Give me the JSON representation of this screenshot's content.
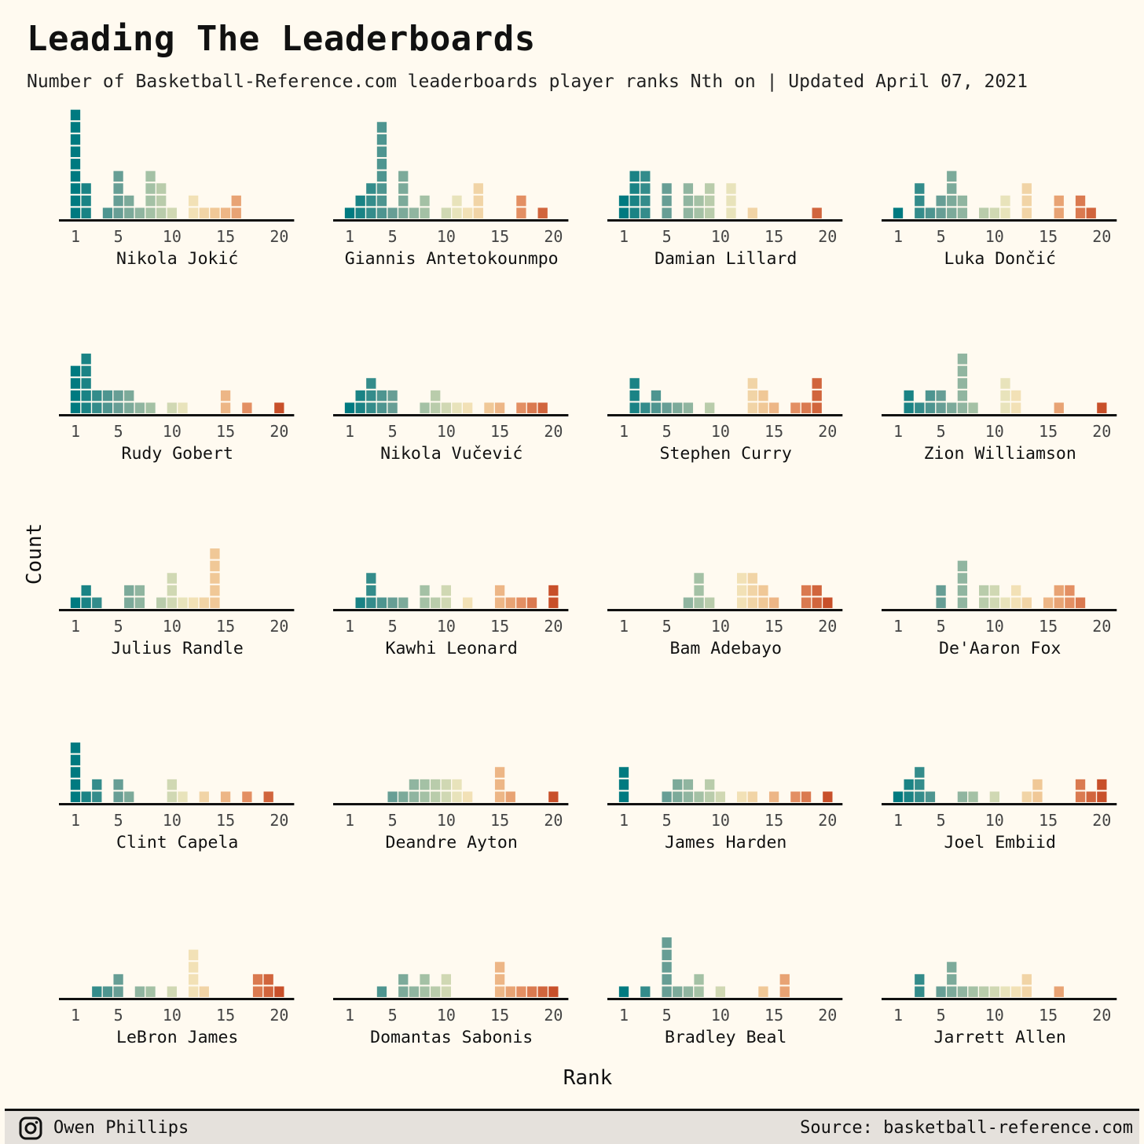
{
  "title": "Leading The Leaderboards",
  "subtitle": "Number of Basketball-Reference.com leaderboards player ranks Nth on | Updated April 07, 2021",
  "ylabel": "Count",
  "xlabel": "Rank",
  "footer": {
    "author": "Owen Phillips",
    "source": "Source: basketball-reference.com",
    "icon": "instagram-icon"
  },
  "colors": {
    "background": "#fffaf0",
    "palette_low": "#007a80",
    "palette_mid": "#f1e8c0",
    "palette_high": "#c8502a"
  },
  "chart_data": {
    "type": "bar",
    "facet_variable": "player",
    "x_ticks": [
      1,
      5,
      10,
      15,
      20
    ],
    "xlim": [
      1,
      20
    ],
    "ylim": [
      0,
      9
    ],
    "x": [
      1,
      2,
      3,
      4,
      5,
      6,
      7,
      8,
      9,
      10,
      11,
      12,
      13,
      14,
      15,
      16,
      17,
      18,
      19,
      20
    ],
    "series": [
      {
        "name": "Nikola Jokić",
        "values": [
          9,
          3,
          0,
          1,
          4,
          2,
          1,
          4,
          3,
          1,
          0,
          2,
          1,
          1,
          1,
          2,
          0,
          0,
          0,
          0
        ]
      },
      {
        "name": "Giannis Antetokounmpo",
        "values": [
          1,
          2,
          3,
          8,
          1,
          4,
          1,
          2,
          0,
          1,
          2,
          1,
          3,
          0,
          0,
          0,
          2,
          0,
          1,
          0
        ]
      },
      {
        "name": "Damian Lillard",
        "values": [
          2,
          4,
          4,
          0,
          3,
          0,
          3,
          2,
          3,
          0,
          3,
          0,
          1,
          0,
          0,
          0,
          0,
          0,
          1,
          0
        ]
      },
      {
        "name": "Luka Dončić",
        "values": [
          1,
          0,
          3,
          1,
          2,
          4,
          2,
          0,
          1,
          1,
          2,
          0,
          3,
          0,
          0,
          2,
          0,
          2,
          1,
          0
        ]
      },
      {
        "name": "Rudy Gobert",
        "values": [
          4,
          5,
          2,
          2,
          2,
          2,
          1,
          1,
          0,
          1,
          1,
          0,
          0,
          0,
          2,
          0,
          1,
          0,
          0,
          1
        ]
      },
      {
        "name": "Nikola Vučević",
        "values": [
          1,
          2,
          3,
          2,
          2,
          0,
          0,
          1,
          2,
          1,
          1,
          1,
          0,
          1,
          1,
          0,
          1,
          1,
          1,
          0
        ]
      },
      {
        "name": "Stephen Curry",
        "values": [
          0,
          3,
          1,
          2,
          1,
          1,
          1,
          0,
          1,
          0,
          0,
          0,
          3,
          2,
          1,
          0,
          1,
          1,
          3,
          0
        ]
      },
      {
        "name": "Zion Williamson",
        "values": [
          0,
          2,
          1,
          2,
          2,
          1,
          5,
          1,
          0,
          0,
          3,
          2,
          0,
          0,
          0,
          1,
          0,
          0,
          0,
          1
        ]
      },
      {
        "name": "Julius Randle",
        "values": [
          1,
          2,
          1,
          0,
          0,
          2,
          2,
          0,
          1,
          3,
          1,
          1,
          1,
          5,
          0,
          0,
          0,
          0,
          0,
          0
        ]
      },
      {
        "name": "Kawhi Leonard",
        "values": [
          0,
          1,
          3,
          1,
          1,
          1,
          0,
          2,
          1,
          2,
          0,
          1,
          0,
          0,
          2,
          1,
          1,
          1,
          0,
          2
        ]
      },
      {
        "name": "Bam Adebayo",
        "values": [
          0,
          0,
          0,
          0,
          0,
          0,
          1,
          3,
          1,
          0,
          0,
          3,
          3,
          2,
          1,
          0,
          0,
          2,
          2,
          1
        ]
      },
      {
        "name": "De'Aaron Fox",
        "values": [
          0,
          0,
          0,
          0,
          2,
          0,
          4,
          0,
          2,
          2,
          1,
          2,
          1,
          0,
          1,
          2,
          2,
          1,
          0,
          0
        ]
      },
      {
        "name": "Clint Capela",
        "values": [
          5,
          1,
          2,
          0,
          2,
          1,
          0,
          0,
          0,
          2,
          1,
          0,
          1,
          0,
          1,
          0,
          1,
          0,
          1,
          0
        ]
      },
      {
        "name": "Deandre Ayton",
        "values": [
          0,
          0,
          0,
          0,
          1,
          1,
          2,
          2,
          2,
          2,
          2,
          1,
          0,
          0,
          3,
          1,
          0,
          0,
          0,
          1
        ]
      },
      {
        "name": "James Harden",
        "values": [
          3,
          0,
          0,
          0,
          1,
          2,
          2,
          1,
          2,
          1,
          0,
          1,
          1,
          0,
          1,
          0,
          1,
          1,
          0,
          1
        ]
      },
      {
        "name": "Joel Embiid",
        "values": [
          1,
          2,
          3,
          1,
          0,
          0,
          1,
          1,
          0,
          1,
          0,
          0,
          1,
          2,
          0,
          0,
          0,
          2,
          1,
          2
        ]
      },
      {
        "name": "LeBron James",
        "values": [
          0,
          0,
          1,
          1,
          2,
          0,
          1,
          1,
          0,
          1,
          0,
          4,
          1,
          0,
          0,
          0,
          0,
          2,
          2,
          1
        ]
      },
      {
        "name": "Domantas Sabonis",
        "values": [
          0,
          0,
          0,
          1,
          0,
          2,
          1,
          2,
          1,
          2,
          0,
          0,
          0,
          0,
          3,
          1,
          1,
          1,
          1,
          1
        ]
      },
      {
        "name": "Bradley Beal",
        "values": [
          1,
          0,
          1,
          0,
          5,
          1,
          1,
          2,
          0,
          1,
          0,
          0,
          0,
          1,
          0,
          2,
          0,
          0,
          0,
          0
        ]
      },
      {
        "name": "Jarrett Allen",
        "values": [
          0,
          0,
          2,
          0,
          1,
          3,
          1,
          1,
          1,
          1,
          1,
          1,
          2,
          0,
          0,
          1,
          0,
          0,
          0,
          0
        ]
      }
    ]
  }
}
